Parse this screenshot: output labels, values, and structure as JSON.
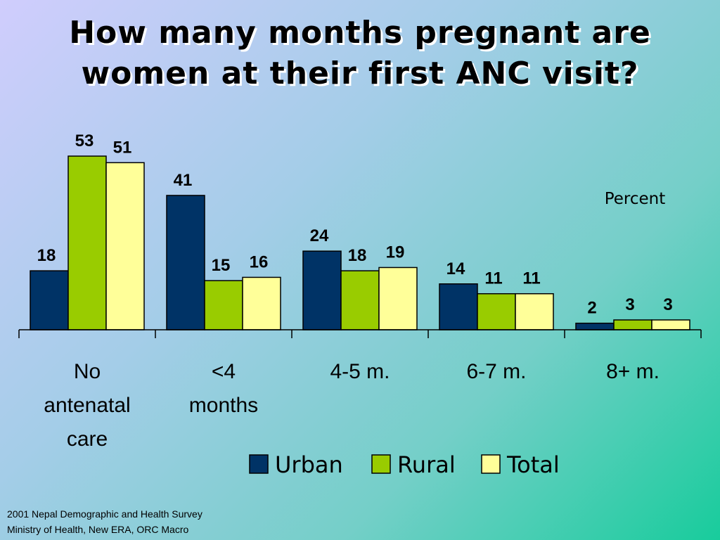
{
  "title": {
    "line1": "How many months pregnant are",
    "line2": "women at their first ANC visit?"
  },
  "chart_data": {
    "type": "bar",
    "unit_label": "Percent",
    "categories": [
      [
        "No",
        "antenatal",
        "care"
      ],
      [
        "<4",
        "months"
      ],
      [
        "4-5 m."
      ],
      [
        "6-7 m."
      ],
      [
        "8+ m."
      ]
    ],
    "series": [
      {
        "name": "Urban",
        "color": "#003366",
        "values": [
          18,
          41,
          24,
          14,
          2
        ]
      },
      {
        "name": "Rural",
        "color": "#99cc00",
        "values": [
          53,
          15,
          18,
          11,
          3
        ]
      },
      {
        "name": "Total",
        "color": "#ffff99",
        "values": [
          51,
          16,
          19,
          11,
          3
        ]
      }
    ],
    "ylim": [
      0,
      55
    ],
    "grid": false,
    "legend_position": "bottom"
  },
  "source": {
    "line1": "2001 Nepal Demographic and Health Survey",
    "line2": "Ministry of Health, New ERA, ORC Macro"
  }
}
